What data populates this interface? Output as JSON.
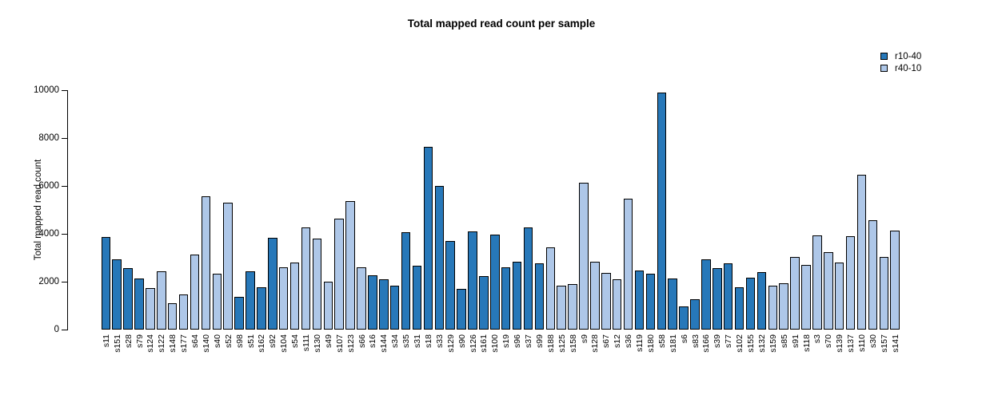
{
  "chart_data": {
    "type": "bar",
    "title": "Total mapped read count per sample",
    "ylabel": "Total mapped read count",
    "xlabel": "",
    "ylim": [
      0,
      10000
    ],
    "yticks": [
      0,
      2000,
      4000,
      6000,
      8000,
      10000
    ],
    "grid": false,
    "legend_position": "top-right",
    "legend": [
      {
        "label": "r10-40",
        "color": "#2778b9"
      },
      {
        "label": "r40-10",
        "color": "#aec7e8"
      }
    ],
    "bars": [
      {
        "sample": "s11",
        "value": 3870,
        "group": "r10-40"
      },
      {
        "sample": "s151",
        "value": 2940,
        "group": "r10-40"
      },
      {
        "sample": "s28",
        "value": 2560,
        "group": "r10-40"
      },
      {
        "sample": "s79",
        "value": 2130,
        "group": "r10-40"
      },
      {
        "sample": "s124",
        "value": 1720,
        "group": "r40-10"
      },
      {
        "sample": "s122",
        "value": 2420,
        "group": "r40-10"
      },
      {
        "sample": "s148",
        "value": 1110,
        "group": "r40-10"
      },
      {
        "sample": "s177",
        "value": 1470,
        "group": "r40-10"
      },
      {
        "sample": "s64",
        "value": 3130,
        "group": "r40-10"
      },
      {
        "sample": "s140",
        "value": 5560,
        "group": "r40-10"
      },
      {
        "sample": "s40",
        "value": 2330,
        "group": "r40-10"
      },
      {
        "sample": "s52",
        "value": 5310,
        "group": "r40-10"
      },
      {
        "sample": "s98",
        "value": 1360,
        "group": "r10-40"
      },
      {
        "sample": "s51",
        "value": 2420,
        "group": "r10-40"
      },
      {
        "sample": "s162",
        "value": 1780,
        "group": "r10-40"
      },
      {
        "sample": "s92",
        "value": 3830,
        "group": "r10-40"
      },
      {
        "sample": "s104",
        "value": 2610,
        "group": "r40-10"
      },
      {
        "sample": "s54",
        "value": 2810,
        "group": "r40-10"
      },
      {
        "sample": "s111",
        "value": 4260,
        "group": "r40-10"
      },
      {
        "sample": "s130",
        "value": 3800,
        "group": "r40-10"
      },
      {
        "sample": "s49",
        "value": 2000,
        "group": "r40-10"
      },
      {
        "sample": "s107",
        "value": 4630,
        "group": "r40-10"
      },
      {
        "sample": "s123",
        "value": 5360,
        "group": "r40-10"
      },
      {
        "sample": "s66",
        "value": 2610,
        "group": "r40-10"
      },
      {
        "sample": "s16",
        "value": 2260,
        "group": "r10-40"
      },
      {
        "sample": "s144",
        "value": 2110,
        "group": "r10-40"
      },
      {
        "sample": "s34",
        "value": 1830,
        "group": "r10-40"
      },
      {
        "sample": "s35",
        "value": 4080,
        "group": "r10-40"
      },
      {
        "sample": "s31",
        "value": 2670,
        "group": "r10-40"
      },
      {
        "sample": "s18",
        "value": 7630,
        "group": "r10-40"
      },
      {
        "sample": "s33",
        "value": 6000,
        "group": "r10-40"
      },
      {
        "sample": "s129",
        "value": 3700,
        "group": "r10-40"
      },
      {
        "sample": "s90",
        "value": 1690,
        "group": "r10-40"
      },
      {
        "sample": "s126",
        "value": 4090,
        "group": "r10-40"
      },
      {
        "sample": "s161",
        "value": 2220,
        "group": "r10-40"
      },
      {
        "sample": "s100",
        "value": 3970,
        "group": "r10-40"
      },
      {
        "sample": "s19",
        "value": 2610,
        "group": "r10-40"
      },
      {
        "sample": "s96",
        "value": 2830,
        "group": "r10-40"
      },
      {
        "sample": "s37",
        "value": 4270,
        "group": "r10-40"
      },
      {
        "sample": "s99",
        "value": 2780,
        "group": "r10-40"
      },
      {
        "sample": "s188",
        "value": 3420,
        "group": "r40-10"
      },
      {
        "sample": "s125",
        "value": 1830,
        "group": "r40-10"
      },
      {
        "sample": "s158",
        "value": 1910,
        "group": "r40-10"
      },
      {
        "sample": "s9",
        "value": 6130,
        "group": "r40-10"
      },
      {
        "sample": "s128",
        "value": 2830,
        "group": "r40-10"
      },
      {
        "sample": "s67",
        "value": 2370,
        "group": "r40-10"
      },
      {
        "sample": "s12",
        "value": 2110,
        "group": "r40-10"
      },
      {
        "sample": "s36",
        "value": 5470,
        "group": "r40-10"
      },
      {
        "sample": "s119",
        "value": 2480,
        "group": "r10-40"
      },
      {
        "sample": "s180",
        "value": 2330,
        "group": "r10-40"
      },
      {
        "sample": "s58",
        "value": 9890,
        "group": "r10-40"
      },
      {
        "sample": "s181",
        "value": 2130,
        "group": "r10-40"
      },
      {
        "sample": "s6",
        "value": 980,
        "group": "r10-40"
      },
      {
        "sample": "s83",
        "value": 1260,
        "group": "r10-40"
      },
      {
        "sample": "s166",
        "value": 2940,
        "group": "r10-40"
      },
      {
        "sample": "s39",
        "value": 2580,
        "group": "r10-40"
      },
      {
        "sample": "s77",
        "value": 2780,
        "group": "r10-40"
      },
      {
        "sample": "s102",
        "value": 1780,
        "group": "r10-40"
      },
      {
        "sample": "s155",
        "value": 2170,
        "group": "r10-40"
      },
      {
        "sample": "s132",
        "value": 2390,
        "group": "r10-40"
      },
      {
        "sample": "s159",
        "value": 1830,
        "group": "r40-10"
      },
      {
        "sample": "s85",
        "value": 1930,
        "group": "r40-10"
      },
      {
        "sample": "s91",
        "value": 3030,
        "group": "r40-10"
      },
      {
        "sample": "s118",
        "value": 2700,
        "group": "r40-10"
      },
      {
        "sample": "s3",
        "value": 3930,
        "group": "r40-10"
      },
      {
        "sample": "s70",
        "value": 3220,
        "group": "r40-10"
      },
      {
        "sample": "s139",
        "value": 2800,
        "group": "r40-10"
      },
      {
        "sample": "s137",
        "value": 3890,
        "group": "r40-10"
      },
      {
        "sample": "s110",
        "value": 6470,
        "group": "r40-10"
      },
      {
        "sample": "s30",
        "value": 4580,
        "group": "r40-10"
      },
      {
        "sample": "s157",
        "value": 3030,
        "group": "r40-10"
      },
      {
        "sample": "s141",
        "value": 4130,
        "group": "r40-10"
      }
    ]
  }
}
